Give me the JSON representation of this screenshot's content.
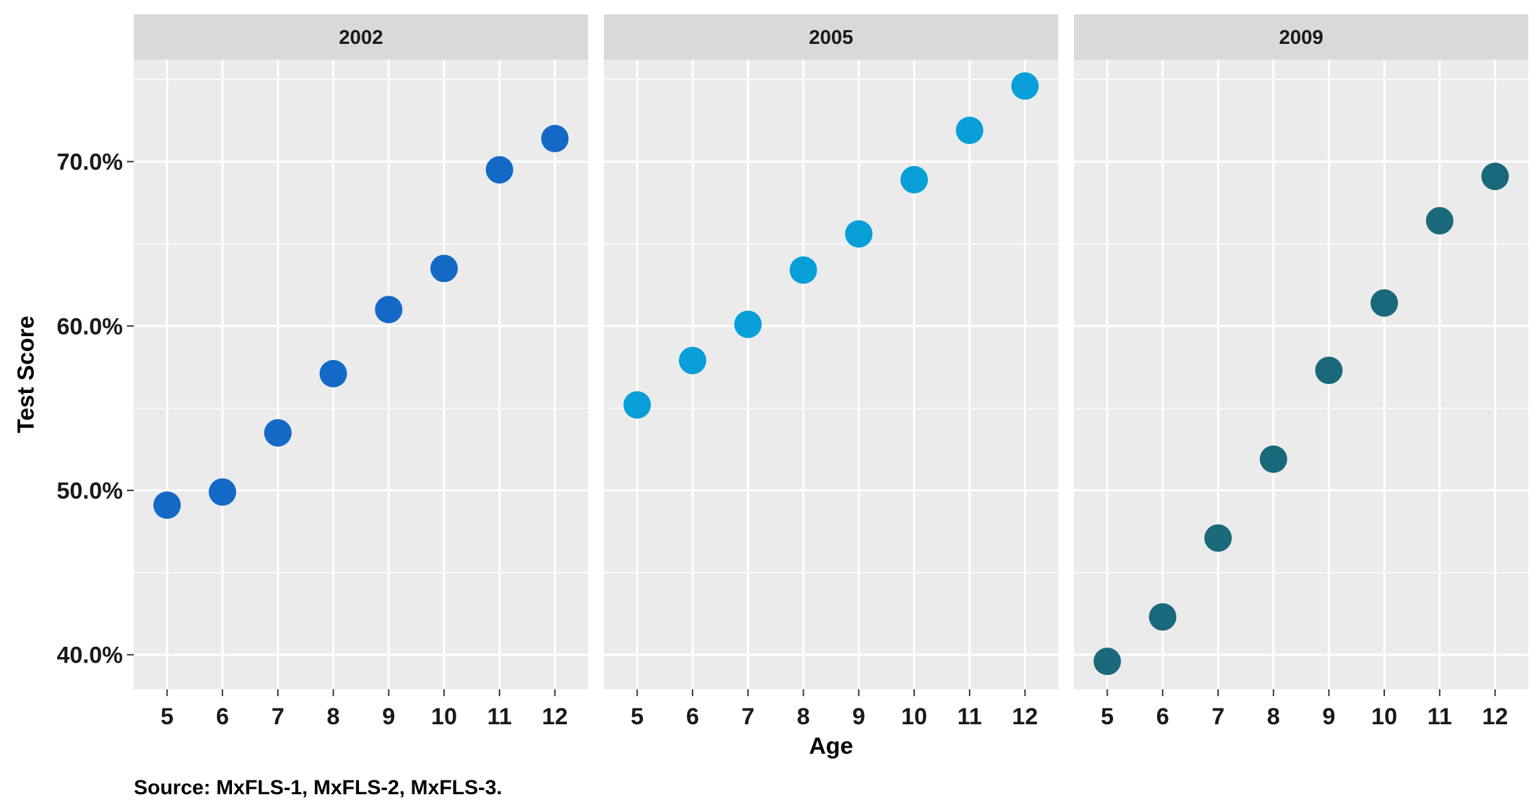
{
  "chart_data": {
    "type": "scatter",
    "xlabel": "Age",
    "ylabel": "Test Score",
    "caption": "Source: MxFLS-1, MxFLS-2, MxFLS-3.",
    "x": [
      5,
      6,
      7,
      8,
      9,
      10,
      11,
      12
    ],
    "x_tick_labels": [
      "5",
      "6",
      "7",
      "8",
      "9",
      "10",
      "11",
      "12"
    ],
    "xlim": [
      4.4,
      12.6
    ],
    "ylim": [
      37.9,
      76.2
    ],
    "y_ticks": [
      40,
      50,
      60,
      70
    ],
    "y_tick_labels": [
      "40.0%",
      "50.0%",
      "60.0%",
      "70.0%"
    ],
    "y_minor_ticks": [
      45,
      55,
      65,
      75
    ],
    "grid": true,
    "legend": "none",
    "facets": [
      {
        "label": "2002",
        "color": "#1469c7",
        "values": [
          49.1,
          49.9,
          53.5,
          57.1,
          61.0,
          63.5,
          69.5,
          71.4
        ]
      },
      {
        "label": "2005",
        "color": "#089fd8",
        "values": [
          55.2,
          57.9,
          60.1,
          63.4,
          65.6,
          68.9,
          71.9,
          74.6
        ]
      },
      {
        "label": "2009",
        "color": "#19697a",
        "values": [
          39.6,
          42.3,
          47.1,
          51.9,
          57.3,
          61.4,
          66.4,
          69.1
        ]
      }
    ]
  }
}
